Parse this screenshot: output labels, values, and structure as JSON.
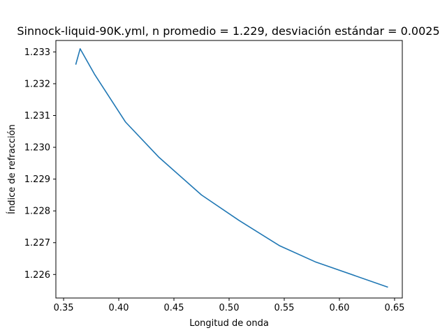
{
  "chart_data": {
    "type": "line",
    "title": "Sinnock-liquid-90K.yml, n promedio = 1.229, desviación estándar = 0.0025",
    "xlabel": "Longitud de onda",
    "ylabel": "Índice de refracción",
    "xlim": [
      0.343,
      0.657
    ],
    "ylim": [
      1.22526,
      1.23336
    ],
    "xticks": [
      0.35,
      0.4,
      0.45,
      0.5,
      0.55,
      0.6,
      0.65
    ],
    "xtick_labels": [
      "0.35",
      "0.40",
      "0.45",
      "0.50",
      "0.55",
      "0.60",
      "0.65"
    ],
    "yticks": [
      1.226,
      1.227,
      1.228,
      1.229,
      1.23,
      1.231,
      1.232,
      1.233
    ],
    "ytick_labels": [
      "1.226",
      "1.227",
      "1.228",
      "1.229",
      "1.230",
      "1.231",
      "1.232",
      "1.233"
    ],
    "grid": false,
    "series": [
      {
        "color": "#1f77b4",
        "x": [
          0.361,
          0.365,
          0.378,
          0.406,
          0.436,
          0.475,
          0.509,
          0.546,
          0.578,
          0.644
        ],
        "y": [
          1.2326,
          1.2331,
          1.2323,
          1.2308,
          1.2297,
          1.2285,
          1.2277,
          1.2269,
          1.2264,
          1.2256
        ]
      }
    ]
  }
}
